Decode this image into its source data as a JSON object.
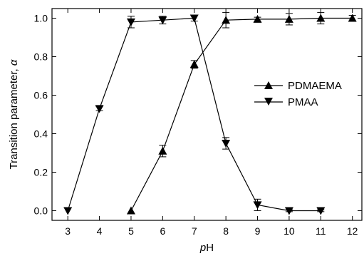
{
  "chart_data": {
    "type": "line",
    "xlabel_prefix": "p",
    "xlabel_suffix": "H",
    "ylabel_text": "Transition parameter, ",
    "ylabel_symbol": "α",
    "xlim": [
      2.5,
      12.3
    ],
    "ylim": [
      -0.05,
      1.05
    ],
    "xticks": [
      3,
      4,
      5,
      6,
      7,
      8,
      9,
      10,
      11,
      12
    ],
    "yticks": [
      0.0,
      0.2,
      0.4,
      0.6,
      0.8,
      1.0
    ],
    "ytick_labels": [
      "0.0",
      "0.2",
      "0.4",
      "0.6",
      "0.8",
      "1.0"
    ],
    "grid": false,
    "legend_position": "center-right",
    "series": [
      {
        "name": "PDMAEMA",
        "marker": "triangle-up",
        "color": "#000000",
        "x": [
          5,
          6,
          7,
          8,
          9,
          10,
          11,
          12
        ],
        "y": [
          0.0,
          0.31,
          0.76,
          0.99,
          0.995,
          0.995,
          1.0,
          1.0
        ],
        "err": [
          0.0,
          0.03,
          0.02,
          0.04,
          0.01,
          0.03,
          0.03,
          0.015
        ]
      },
      {
        "name": "PMAA",
        "marker": "triangle-down",
        "color": "#000000",
        "x": [
          3,
          4,
          5,
          6,
          7,
          8,
          9,
          10,
          11
        ],
        "y": [
          0.0,
          0.53,
          0.98,
          0.99,
          1.0,
          0.35,
          0.03,
          0.0,
          0.0
        ],
        "err": [
          0.0,
          0.01,
          0.03,
          0.02,
          0.015,
          0.03,
          0.03,
          0.005,
          0.005
        ]
      }
    ]
  }
}
